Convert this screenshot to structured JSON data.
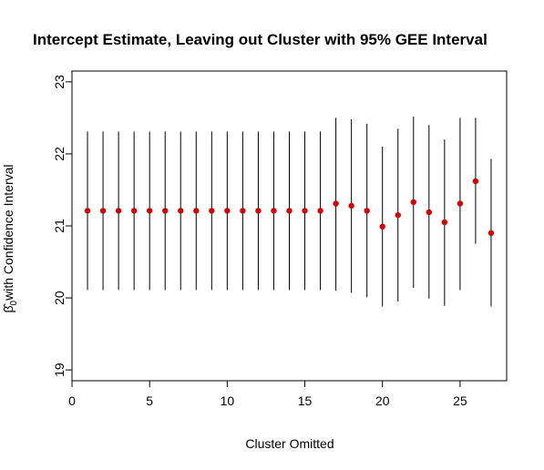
{
  "chart_data": {
    "type": "scatter",
    "title": "Intercept Estimate, Leaving out Cluster with 95% GEE Interval",
    "xlabel": "Cluster Omitted",
    "ylabel_beta": "β̂",
    "ylabel_sub": "0",
    "ylabel_rest": "with Confidence Interval",
    "xlim": [
      0,
      28
    ],
    "ylim": [
      18.85,
      23.15
    ],
    "x_ticks": [
      0,
      5,
      10,
      15,
      20,
      25
    ],
    "y_ticks": [
      19,
      20,
      21,
      22,
      23
    ],
    "grid": false,
    "point_color": "#d40000",
    "interval_color": "#000000",
    "series": [
      {
        "x": [
          1,
          2,
          3,
          4,
          5,
          6,
          7,
          8,
          9,
          10,
          11,
          12,
          13,
          14,
          15,
          16,
          17,
          18,
          19,
          20,
          21,
          22,
          23,
          24,
          25,
          26,
          27
        ],
        "estimate": [
          21.21,
          21.21,
          21.21,
          21.21,
          21.21,
          21.21,
          21.21,
          21.21,
          21.21,
          21.21,
          21.21,
          21.21,
          21.21,
          21.21,
          21.21,
          21.21,
          21.31,
          21.28,
          21.21,
          20.99,
          21.15,
          21.33,
          21.19,
          21.05,
          21.31,
          21.62,
          20.9
        ],
        "lower": [
          20.11,
          20.11,
          20.11,
          20.11,
          20.11,
          20.11,
          20.11,
          20.11,
          20.11,
          20.11,
          20.11,
          20.11,
          20.11,
          20.11,
          20.11,
          20.11,
          20.1,
          20.07,
          20.01,
          19.88,
          19.95,
          20.14,
          19.99,
          19.89,
          20.11,
          20.75,
          19.88
        ],
        "upper": [
          22.31,
          22.31,
          22.31,
          22.31,
          22.31,
          22.31,
          22.31,
          22.31,
          22.31,
          22.31,
          22.31,
          22.31,
          22.31,
          22.31,
          22.31,
          22.31,
          22.5,
          22.48,
          22.42,
          22.1,
          22.35,
          22.52,
          22.4,
          22.2,
          22.5,
          22.5,
          21.93
        ]
      }
    ]
  }
}
